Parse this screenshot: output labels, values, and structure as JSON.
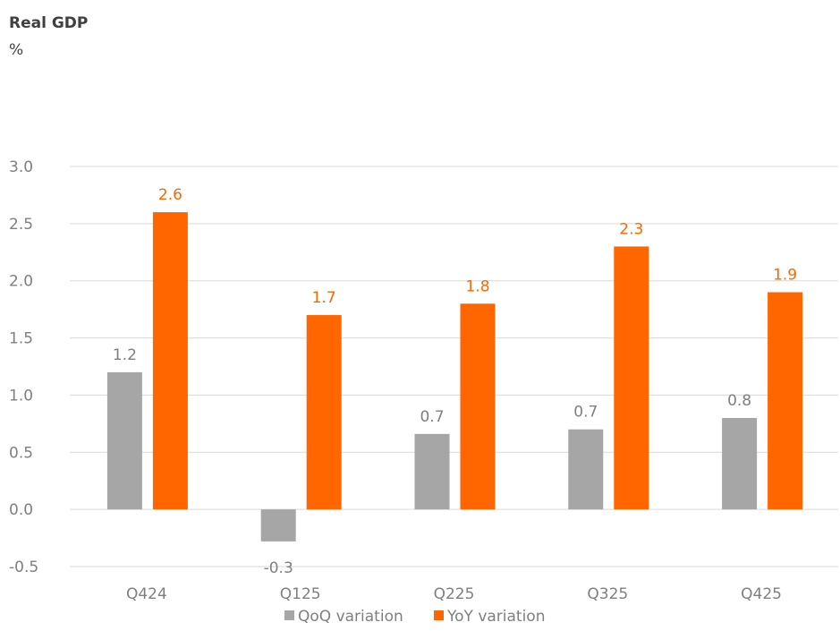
{
  "chart_data": {
    "type": "bar",
    "title": "Real GDP",
    "subtitle": "%",
    "categories": [
      "Q424",
      "Q125",
      "Q225",
      "Q325",
      "Q425"
    ],
    "series": [
      {
        "name": "QoQ variation",
        "color": "#a6a6a6",
        "label_color": "#7f7f7f",
        "values": [
          1.2,
          -0.28,
          0.66,
          0.7,
          0.8
        ],
        "labels": [
          "1.2",
          "-0.3",
          "0.7",
          "0.7",
          "0.8"
        ]
      },
      {
        "name": "YoY variation",
        "color": "#ff6600",
        "label_color": "#ff6600",
        "values": [
          2.6,
          1.7,
          1.8,
          2.3,
          1.9
        ],
        "labels": [
          "2.6",
          "1.7",
          "1.8",
          "2.3",
          "1.9"
        ]
      }
    ],
    "ylim": [
      -0.5,
      3.0
    ],
    "yticks": [
      "3.0",
      "2.5",
      "2.0",
      "1.5",
      "1.0",
      "0.5",
      "0.0",
      "-0.5"
    ],
    "ytick_values": [
      3.0,
      2.5,
      2.0,
      1.5,
      1.0,
      0.5,
      0.0,
      -0.5
    ],
    "grid": true,
    "legend_position": "bottom"
  }
}
